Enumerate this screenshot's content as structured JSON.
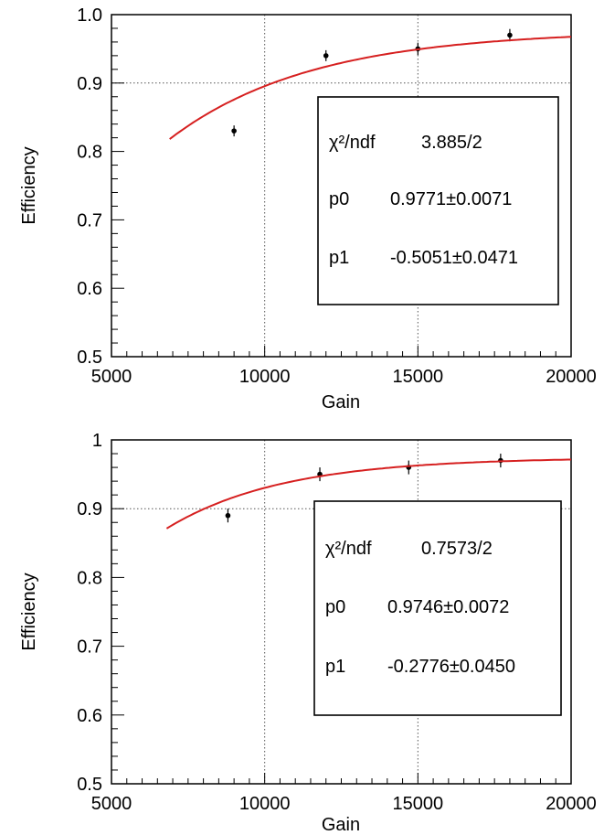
{
  "colors": {
    "fit": "#d62020",
    "points": "#000000",
    "grid": "#555555"
  },
  "stat_labels": {
    "chi2_label": "χ²/ndf",
    "p0_label": "p0",
    "p1_label": "p1"
  },
  "chart_data": [
    {
      "type": "scatter",
      "xlabel": "Gain",
      "ylabel": "Efficiency",
      "xlim": [
        5000,
        20000
      ],
      "ylim": [
        0.5,
        1.0
      ],
      "x_ticks": [
        "5000",
        "10000",
        "15000",
        "20000"
      ],
      "y_ticks": [
        "0.5",
        "0.6",
        "0.7",
        "0.8",
        "0.9",
        "1.0"
      ],
      "grid": "dotted at x=10000, 15000 and y=0.9",
      "points": [
        {
          "x": 9000,
          "y": 0.83,
          "err": 0.008
        },
        {
          "x": 12000,
          "y": 0.94,
          "err": 0.008
        },
        {
          "x": 15000,
          "y": 0.95,
          "err": 0.009
        },
        {
          "x": 18000,
          "y": 0.97,
          "err": 0.009
        }
      ],
      "fit": {
        "x_range": [
          6900,
          20000
        ],
        "p0": 0.9771,
        "p1": -0.5051,
        "p1_scale": 0.00025,
        "chi2_ndf": "3.885/2",
        "p0_text": "0.9771±0.0071",
        "p1_text": "-0.5051±0.0471"
      },
      "legend_placement": "right"
    },
    {
      "type": "scatter",
      "xlabel": "Gain",
      "ylabel": "Efficiency",
      "xlim": [
        5000,
        20000
      ],
      "ylim": [
        0.5,
        1.0
      ],
      "x_ticks": [
        "5000",
        "10000",
        "15000",
        "20000"
      ],
      "y_ticks": [
        "0.5",
        "0.6",
        "0.7",
        "0.8",
        "0.9",
        "1"
      ],
      "grid": "dotted at x=10000, 15000 and y=0.9",
      "points": [
        {
          "x": 8800,
          "y": 0.89,
          "err": 0.01
        },
        {
          "x": 11800,
          "y": 0.95,
          "err": 0.01
        },
        {
          "x": 14700,
          "y": 0.96,
          "err": 0.01
        },
        {
          "x": 17700,
          "y": 0.97,
          "err": 0.01
        }
      ],
      "fit": {
        "x_range": [
          6800,
          20000
        ],
        "p0": 0.9746,
        "p1": -0.2776,
        "p1_scale": 0.00025,
        "chi2_ndf": "0.7573/2",
        "p0_text": "0.9746±0.0072",
        "p1_text": "-0.2776±0.0450"
      },
      "legend_placement": "right"
    }
  ]
}
